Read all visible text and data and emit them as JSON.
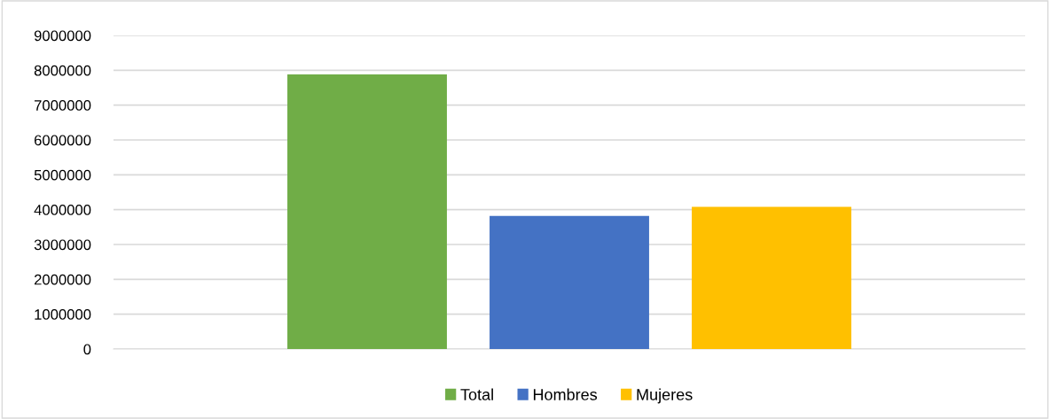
{
  "chart_data": {
    "type": "bar",
    "categories": [
      null
    ],
    "series": [
      {
        "name": "Total",
        "color": "#70ad47",
        "values": [
          7880000
        ]
      },
      {
        "name": "Hombres",
        "color": "#4472c4",
        "values": [
          3820000
        ]
      },
      {
        "name": "Mujeres",
        "color": "#ffc000",
        "values": [
          4080000
        ]
      }
    ],
    "ylim": [
      0,
      9000000
    ],
    "yticks": [
      0,
      1000000,
      2000000,
      3000000,
      4000000,
      5000000,
      6000000,
      7000000,
      8000000,
      9000000
    ],
    "grid": "y",
    "legend": "bottom"
  }
}
